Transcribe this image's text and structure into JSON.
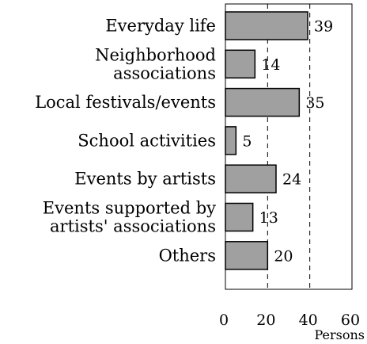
{
  "chart_data": {
    "type": "bar",
    "orientation": "horizontal",
    "categories": [
      [
        "Everyday life"
      ],
      [
        "Neighborhood",
        "associations"
      ],
      [
        "Local festivals/events"
      ],
      [
        "School activities"
      ],
      [
        "Events by artists"
      ],
      [
        "Events supported by",
        "artists' associations"
      ],
      [
        "Others"
      ]
    ],
    "values": [
      39,
      14,
      35,
      5,
      24,
      13,
      20
    ],
    "xlim": [
      0,
      60
    ],
    "xticks": [
      0,
      20,
      40,
      60
    ],
    "xlabel": "Persons",
    "grid": "dashed vertical lines at 20 and 40",
    "bar_color": "#a0a0a0",
    "bar_edge_color": "#000000"
  }
}
